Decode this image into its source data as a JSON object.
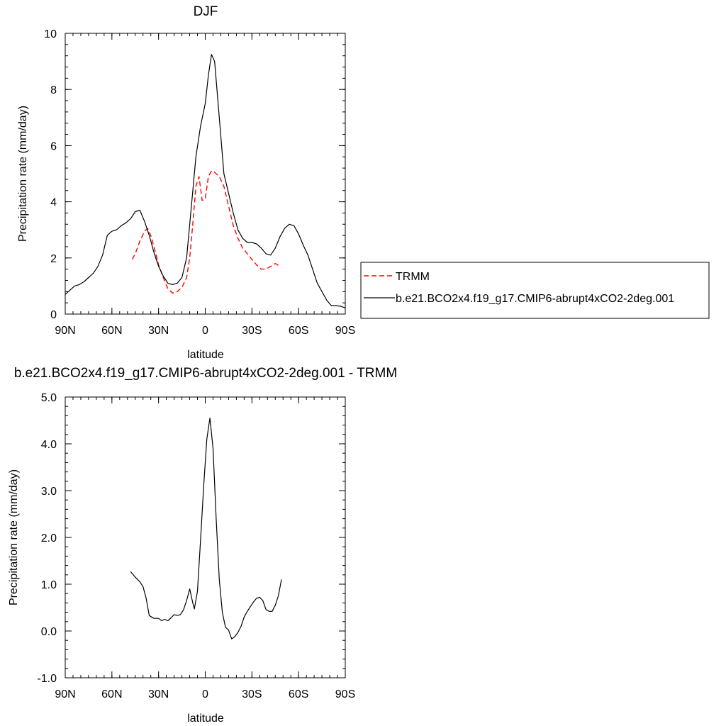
{
  "chart_data": [
    {
      "type": "line",
      "title": "DJF",
      "xlabel": "latitude",
      "ylabel": "Precipitation rate (mm/day)",
      "xlim": [
        -90,
        90
      ],
      "ylim": [
        0,
        10
      ],
      "x_ticks": [
        -90,
        -60,
        -30,
        0,
        30,
        60,
        90
      ],
      "x_tick_labels": [
        "90N",
        "60N",
        "30N",
        "0",
        "30S",
        "60S",
        "90S"
      ],
      "y_ticks": [
        0,
        2,
        4,
        6,
        8,
        10
      ],
      "y_tick_labels": [
        "0",
        "2",
        "4",
        "6",
        "8",
        "10"
      ],
      "legend_position": "right",
      "series": [
        {
          "name": "TRMM",
          "color": "#ff0000",
          "dash": "dashed",
          "x": [
            -47,
            -45,
            -42,
            -39,
            -37,
            -35,
            -32,
            -30,
            -27,
            -24,
            -21,
            -18,
            -15,
            -12,
            -10,
            -8,
            -6,
            -4,
            -2,
            0,
            2,
            4,
            6,
            9,
            12,
            15,
            18,
            21,
            24,
            27,
            30,
            33,
            36,
            39,
            42,
            45,
            48
          ],
          "y": [
            1.95,
            2.15,
            2.6,
            2.95,
            3.05,
            2.8,
            2.2,
            1.75,
            1.3,
            0.9,
            0.75,
            0.8,
            0.95,
            1.3,
            2.0,
            3.2,
            4.55,
            4.9,
            4.05,
            4.1,
            4.9,
            5.1,
            5.05,
            4.9,
            4.55,
            3.85,
            3.15,
            2.7,
            2.35,
            2.15,
            1.95,
            1.75,
            1.6,
            1.6,
            1.7,
            1.8,
            1.7
          ]
        },
        {
          "name": "b.e21.BCO2x4.f19_g17.CMIP6-abrupt4xCO2-2deg.001",
          "color": "#000000",
          "dash": "solid",
          "x": [
            -90,
            -87,
            -84,
            -81,
            -78,
            -75,
            -72,
            -69,
            -66,
            -63,
            -60,
            -57,
            -54,
            -51,
            -48,
            -45,
            -42,
            -39,
            -36,
            -33,
            -30,
            -27,
            -24,
            -21,
            -18,
            -15,
            -12,
            -9,
            -6,
            -3,
            0,
            2,
            4,
            6,
            9,
            12,
            15,
            18,
            21,
            24,
            27,
            30,
            33,
            36,
            39,
            42,
            45,
            48,
            51,
            54,
            57,
            60,
            63,
            66,
            69,
            72,
            75,
            78,
            81,
            84,
            87,
            90
          ],
          "y": [
            0.7,
            0.85,
            1.0,
            1.05,
            1.15,
            1.3,
            1.45,
            1.7,
            2.1,
            2.8,
            2.95,
            3.0,
            3.15,
            3.25,
            3.4,
            3.65,
            3.7,
            3.3,
            2.8,
            2.2,
            1.7,
            1.35,
            1.1,
            1.05,
            1.1,
            1.3,
            2.0,
            3.8,
            5.6,
            6.7,
            7.5,
            8.5,
            9.25,
            9.0,
            7.0,
            5.0,
            4.3,
            3.6,
            3.0,
            2.7,
            2.55,
            2.55,
            2.5,
            2.35,
            2.15,
            2.1,
            2.35,
            2.75,
            3.05,
            3.2,
            3.15,
            2.85,
            2.45,
            2.1,
            1.6,
            1.1,
            0.8,
            0.5,
            0.3,
            0.3,
            0.28,
            0.22
          ]
        }
      ]
    },
    {
      "type": "line",
      "title": "b.e21.BCO2x4.f19_g17.CMIP6-abrupt4xCO2-2deg.001 - TRMM",
      "xlabel": "latitude",
      "ylabel": "Precipitation rate (mm/day)",
      "xlim": [
        -90,
        90
      ],
      "ylim": [
        -1,
        5
      ],
      "x_ticks": [
        -90,
        -60,
        -30,
        0,
        30,
        60,
        90
      ],
      "x_tick_labels": [
        "90N",
        "60N",
        "30N",
        "0",
        "30S",
        "60S",
        "90S"
      ],
      "y_ticks": [
        -1,
        0,
        1,
        2,
        3,
        4,
        5
      ],
      "y_tick_labels": [
        "-1.0",
        "0.0",
        "1.0",
        "2.0",
        "3.0",
        "4.0",
        "5.0"
      ],
      "series": [
        {
          "name": "",
          "color": "#000000",
          "dash": "solid",
          "x": [
            -48,
            -45,
            -42,
            -40,
            -38,
            -36,
            -33,
            -30,
            -28,
            -26,
            -24,
            -22,
            -20,
            -18,
            -16,
            -14,
            -12,
            -10,
            -8,
            -7,
            -5,
            -3,
            -1,
            1,
            3,
            5,
            7,
            9,
            11,
            13,
            15,
            17,
            19,
            21,
            23,
            25,
            27,
            29,
            31,
            33,
            35,
            37,
            39,
            41,
            43,
            45,
            47,
            49
          ],
          "y": [
            1.27,
            1.15,
            1.05,
            0.95,
            0.7,
            0.33,
            0.27,
            0.27,
            0.22,
            0.25,
            0.22,
            0.28,
            0.35,
            0.33,
            0.35,
            0.45,
            0.65,
            0.9,
            0.6,
            0.47,
            0.85,
            1.95,
            3.1,
            4.1,
            4.55,
            3.9,
            2.4,
            1.1,
            0.4,
            0.08,
            0.02,
            -0.17,
            -0.12,
            -0.03,
            0.1,
            0.3,
            0.42,
            0.52,
            0.62,
            0.7,
            0.72,
            0.65,
            0.46,
            0.42,
            0.42,
            0.55,
            0.75,
            1.1
          ]
        }
      ]
    }
  ]
}
